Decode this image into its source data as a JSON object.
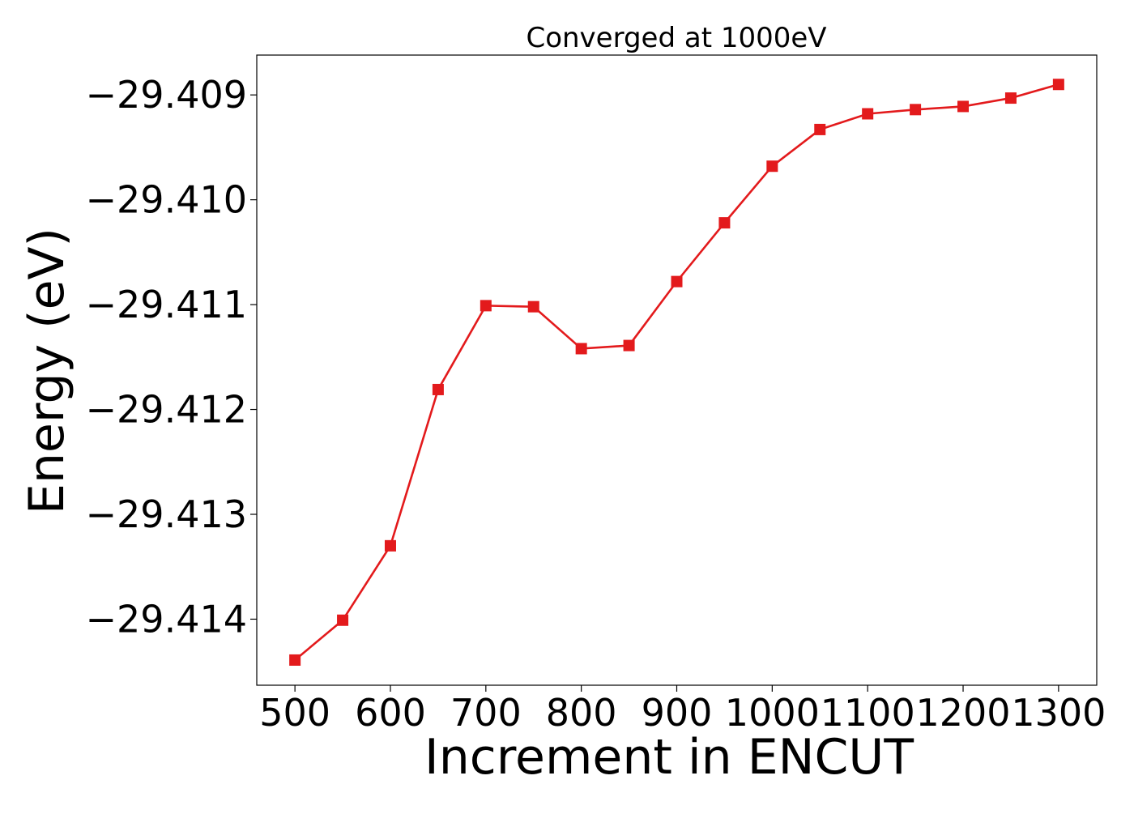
{
  "chart_data": {
    "type": "line",
    "title": "Converged at 1000eV",
    "xlabel": "Increment in ENCUT",
    "ylabel": "Energy (eV)",
    "xlim": [
      460,
      1340
    ],
    "ylim": [
      -29.41463,
      -29.40862
    ],
    "xticks": [
      500,
      600,
      700,
      800,
      900,
      1000,
      1100,
      1200,
      1300
    ],
    "xtick_labels": [
      "500",
      "600",
      "700",
      "800",
      "900",
      "1000",
      "1100",
      "1200",
      "1300"
    ],
    "yticks": [
      -29.409,
      -29.41,
      -29.411,
      -29.412,
      -29.413,
      -29.414
    ],
    "ytick_labels": [
      "−29.409",
      "−29.410",
      "−29.411",
      "−29.412",
      "−29.413",
      "−29.414"
    ],
    "grid": false,
    "series": [
      {
        "color": "#e31a1c",
        "marker": "square",
        "x": [
          500,
          550,
          600,
          650,
          700,
          750,
          800,
          850,
          900,
          950,
          1000,
          1050,
          1100,
          1150,
          1200,
          1250,
          1300
        ],
        "y": [
          -29.41439,
          -29.41401,
          -29.4133,
          -29.41181,
          -29.41101,
          -29.41102,
          -29.41142,
          -29.41139,
          -29.41078,
          -29.41022,
          -29.40968,
          -29.40933,
          -29.40918,
          -29.40914,
          -29.40911,
          -29.40903,
          -29.4089
        ]
      }
    ]
  }
}
